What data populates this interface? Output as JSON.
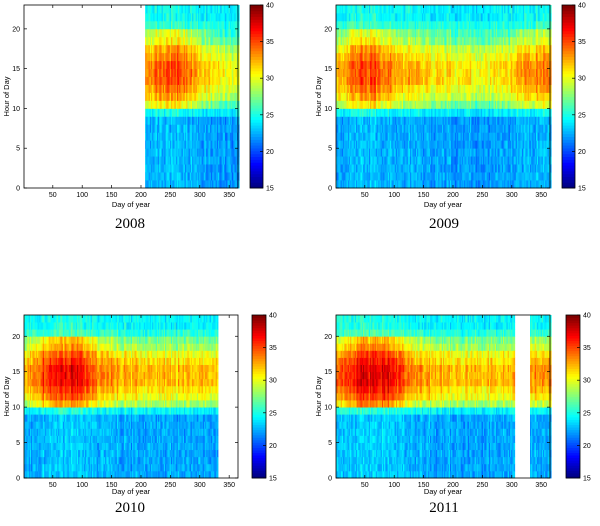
{
  "figure": {
    "colormap": "jet",
    "colorbar_ticks": [
      15,
      20,
      25,
      30,
      35,
      40
    ],
    "color_range": [
      15,
      40
    ],
    "xlabel": "Day of year",
    "ylabel": "Hour of Day",
    "x_ticks": [
      50,
      100,
      150,
      200,
      250,
      300,
      350
    ],
    "y_ticks": [
      0,
      5,
      10,
      15,
      20
    ]
  },
  "chart_data": [
    {
      "type": "heatmap",
      "year_label": "2008",
      "xlabel": "Day of year",
      "ylabel": "Hour of Day",
      "xlim": [
        1,
        365
      ],
      "ylim": [
        0,
        23
      ],
      "data_range_days": [
        207,
        365
      ],
      "missing_days": [
        [
          1,
          206
        ]
      ],
      "colorbar_range": [
        15,
        40
      ],
      "hourly_profile": [
        22,
        22,
        22,
        22,
        22,
        22,
        22,
        22,
        22,
        24,
        27,
        29,
        30,
        31,
        31,
        31,
        30,
        29,
        27,
        26,
        25,
        24,
        24
      ],
      "seasonal_shift": [
        [
          207,
          2
        ],
        [
          240,
          3
        ],
        [
          270,
          3
        ],
        [
          300,
          1
        ],
        [
          330,
          0
        ],
        [
          365,
          -1
        ]
      ]
    },
    {
      "type": "heatmap",
      "year_label": "2009",
      "xlabel": "Day of year",
      "ylabel": "Hour of Day",
      "xlim": [
        1,
        365
      ],
      "ylim": [
        0,
        23
      ],
      "data_range_days": [
        1,
        365
      ],
      "missing_days": [],
      "colorbar_range": [
        15,
        40
      ],
      "hourly_profile": [
        22,
        22,
        22,
        22,
        22,
        22,
        22,
        22,
        22,
        24,
        27,
        29,
        30,
        31,
        31,
        31,
        30,
        29,
        27,
        26,
        25,
        24,
        24
      ],
      "seasonal_shift": [
        [
          1,
          1
        ],
        [
          40,
          3
        ],
        [
          75,
          3
        ],
        [
          120,
          1
        ],
        [
          200,
          0
        ],
        [
          280,
          0
        ],
        [
          330,
          2
        ],
        [
          365,
          2
        ]
      ]
    },
    {
      "type": "heatmap",
      "year_label": "2010",
      "xlabel": "Day of year",
      "ylabel": "Hour of Day",
      "xlim": [
        1,
        365
      ],
      "ylim": [
        0,
        23
      ],
      "data_range_days": [
        1,
        330
      ],
      "missing_days": [
        [
          331,
          365
        ]
      ],
      "colorbar_range": [
        15,
        40
      ],
      "hourly_profile": [
        22,
        22,
        22,
        22,
        22,
        22,
        22,
        22,
        22,
        24,
        27,
        29,
        30,
        31,
        31,
        31,
        30,
        29,
        27,
        26,
        25,
        24,
        24
      ],
      "seasonal_shift": [
        [
          1,
          1
        ],
        [
          40,
          4
        ],
        [
          90,
          5
        ],
        [
          130,
          2
        ],
        [
          200,
          1
        ],
        [
          260,
          1
        ],
        [
          330,
          1
        ]
      ]
    },
    {
      "type": "heatmap",
      "year_label": "2011",
      "xlabel": "Day of year",
      "ylabel": "Hour of Day",
      "xlim": [
        1,
        365
      ],
      "ylim": [
        0,
        23
      ],
      "data_range_days": [
        1,
        365
      ],
      "missing_days": [
        [
          305,
          330
        ]
      ],
      "colorbar_range": [
        15,
        40
      ],
      "hourly_profile": [
        22,
        22,
        22,
        22,
        22,
        22,
        22,
        22,
        22,
        24,
        27,
        29,
        30,
        31,
        31,
        31,
        30,
        29,
        27,
        26,
        25,
        24,
        24
      ],
      "seasonal_shift": [
        [
          1,
          2
        ],
        [
          40,
          5
        ],
        [
          90,
          5
        ],
        [
          130,
          2
        ],
        [
          200,
          1
        ],
        [
          300,
          1
        ],
        [
          340,
          2
        ],
        [
          365,
          2
        ]
      ]
    }
  ]
}
